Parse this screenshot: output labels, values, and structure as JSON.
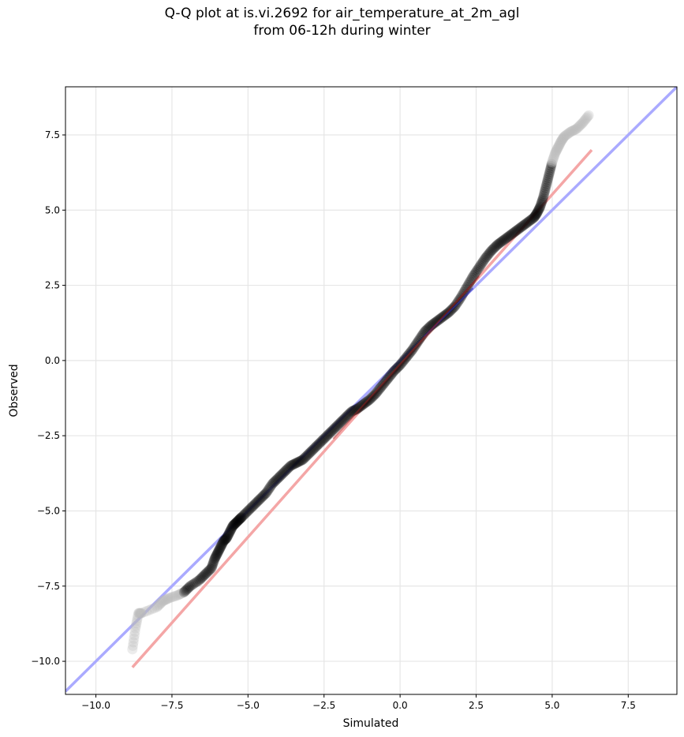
{
  "chart_data": {
    "type": "scatter",
    "title_lines": [
      "Q-Q plot at is.vi.2692 for air_temperature_at_2m_agl",
      "from 06-12h during winter"
    ],
    "xlabel": "Simulated",
    "ylabel": "Observed",
    "xlim": [
      -11.0,
      9.1
    ],
    "ylim": [
      -11.1,
      9.1
    ],
    "x_ticks": [
      -10.0,
      -7.5,
      -5.0,
      -2.5,
      0.0,
      2.5,
      5.0,
      7.5
    ],
    "x_tick_labels": [
      "−10.0",
      "−7.5",
      "−5.0",
      "−2.5",
      "0.0",
      "2.5",
      "5.0",
      "7.5"
    ],
    "y_ticks": [
      -10.0,
      -7.5,
      -5.0,
      -2.5,
      0.0,
      2.5,
      5.0,
      7.5
    ],
    "y_tick_labels": [
      "−10.0",
      "−7.5",
      "−5.0",
      "−2.5",
      "0.0",
      "2.5",
      "5.0",
      "7.5"
    ],
    "grid": true,
    "colors": {
      "identity_line": "#aaaaff",
      "fit_line": "#f4a6a6",
      "points": "#000000",
      "tail_points": "#bbbbbb",
      "center_line_blue": "#3030aa",
      "center_line_red": "#aa2020"
    },
    "identity_line": {
      "x": [
        -11.0,
        9.1
      ],
      "y": [
        -11.0,
        9.1
      ]
    },
    "fit_line": {
      "x": [
        -8.8,
        6.3
      ],
      "y": [
        -10.2,
        7.0
      ]
    },
    "quantiles": {
      "simulated": [
        -8.8,
        -8.7,
        -8.6,
        -8.5,
        -8.0,
        -7.8,
        -7.6,
        -7.3,
        -7.1,
        -6.9,
        -6.6,
        -6.4,
        -6.2,
        -6.1,
        -6.0,
        -5.9,
        -5.8,
        -5.7,
        -5.6,
        -5.5,
        -5.4,
        -5.3,
        -5.2,
        -5.0,
        -4.8,
        -4.6,
        -4.4,
        -4.2,
        -4.0,
        -3.8,
        -3.6,
        -3.4,
        -3.2,
        -3.0,
        -2.8,
        -2.6,
        -2.4,
        -2.2,
        -2.0,
        -1.8,
        -1.6,
        -1.4,
        -1.2,
        -1.0,
        -0.8,
        -0.6,
        -0.4,
        -0.2,
        0.0,
        0.2,
        0.4,
        0.6,
        0.8,
        1.0,
        1.2,
        1.4,
        1.6,
        1.8,
        2.0,
        2.2,
        2.4,
        2.6,
        2.8,
        3.0,
        3.2,
        3.4,
        3.6,
        3.8,
        4.0,
        4.2,
        4.4,
        4.5,
        4.6,
        4.7,
        4.8,
        4.9,
        5.0,
        5.1,
        5.2,
        5.3,
        5.4,
        5.6,
        5.8,
        6.0,
        6.2
      ],
      "observed": [
        -9.6,
        -8.9,
        -8.4,
        -8.4,
        -8.2,
        -8.0,
        -7.9,
        -7.8,
        -7.7,
        -7.5,
        -7.3,
        -7.1,
        -6.9,
        -6.6,
        -6.4,
        -6.2,
        -6.0,
        -5.9,
        -5.7,
        -5.5,
        -5.4,
        -5.3,
        -5.2,
        -5.0,
        -4.8,
        -4.6,
        -4.4,
        -4.1,
        -3.9,
        -3.7,
        -3.5,
        -3.4,
        -3.3,
        -3.1,
        -2.9,
        -2.7,
        -2.5,
        -2.3,
        -2.1,
        -1.9,
        -1.7,
        -1.6,
        -1.45,
        -1.3,
        -1.1,
        -0.85,
        -0.6,
        -0.35,
        -0.15,
        0.1,
        0.35,
        0.65,
        0.95,
        1.15,
        1.3,
        1.45,
        1.6,
        1.8,
        2.1,
        2.45,
        2.8,
        3.1,
        3.4,
        3.65,
        3.85,
        4.0,
        4.15,
        4.3,
        4.45,
        4.6,
        4.75,
        4.9,
        5.1,
        5.4,
        5.8,
        6.2,
        6.6,
        6.9,
        7.1,
        7.3,
        7.45,
        7.6,
        7.7,
        7.9,
        8.15
      ]
    }
  }
}
